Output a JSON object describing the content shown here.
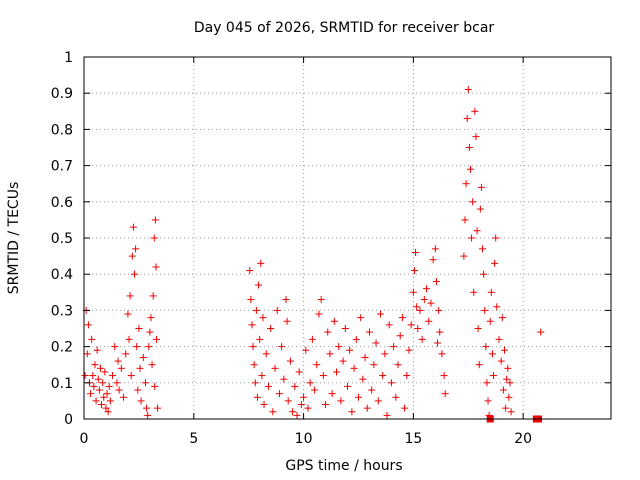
{
  "chart_data": {
    "type": "scatter",
    "title": "Day 045 of 2026, SRMTID for receiver bcar",
    "xlabel": "GPS time / hours",
    "ylabel": "SRMTID / TECUs",
    "xlim": [
      0,
      24
    ],
    "ylim": [
      0,
      1
    ],
    "xticks": [
      0,
      5,
      10,
      15,
      20
    ],
    "xtick_labels": [
      "0",
      "5",
      "10",
      "15",
      "20"
    ],
    "yticks": [
      0,
      0.1,
      0.2,
      0.3,
      0.4,
      0.5,
      0.6,
      0.7,
      0.8,
      0.9,
      1
    ],
    "ytick_labels": [
      "0",
      "0.1",
      "0.2",
      "0.3",
      "0.4",
      "0.5",
      "0.6",
      "0.7",
      "0.8",
      "0.9",
      "1"
    ],
    "grid": true,
    "marker_color": "#ee0000",
    "series": [
      {
        "name": "SRMTID",
        "marker": "plus",
        "points": [
          [
            0.05,
            0.12
          ],
          [
            0.1,
            0.3
          ],
          [
            0.15,
            0.18
          ],
          [
            0.2,
            0.26
          ],
          [
            0.25,
            0.1
          ],
          [
            0.3,
            0.07
          ],
          [
            0.35,
            0.22
          ],
          [
            0.4,
            0.12
          ],
          [
            0.45,
            0.09
          ],
          [
            0.5,
            0.15
          ],
          [
            0.55,
            0.05
          ],
          [
            0.6,
            0.19
          ],
          [
            0.65,
            0.11
          ],
          [
            0.7,
            0.08
          ],
          [
            0.75,
            0.14
          ],
          [
            0.8,
            0.04
          ],
          [
            0.85,
            0.1
          ],
          [
            0.9,
            0.06
          ],
          [
            0.95,
            0.13
          ],
          [
            1.0,
            0.03
          ],
          [
            1.05,
            0.07
          ],
          [
            1.1,
            0.02
          ],
          [
            1.15,
            0.09
          ],
          [
            1.2,
            0.05
          ],
          [
            1.3,
            0.12
          ],
          [
            1.4,
            0.2
          ],
          [
            1.5,
            0.1
          ],
          [
            1.55,
            0.16
          ],
          [
            1.6,
            0.08
          ],
          [
            1.7,
            0.14
          ],
          [
            1.8,
            0.06
          ],
          [
            1.9,
            0.18
          ],
          [
            2.0,
            0.29
          ],
          [
            2.05,
            0.22
          ],
          [
            2.1,
            0.34
          ],
          [
            2.15,
            0.12
          ],
          [
            2.2,
            0.45
          ],
          [
            2.25,
            0.53
          ],
          [
            2.3,
            0.4
          ],
          [
            2.35,
            0.47
          ],
          [
            2.4,
            0.2
          ],
          [
            2.45,
            0.08
          ],
          [
            2.5,
            0.25
          ],
          [
            2.55,
            0.14
          ],
          [
            2.6,
            0.05
          ],
          [
            2.7,
            0.17
          ],
          [
            2.8,
            0.1
          ],
          [
            2.85,
            0.03
          ],
          [
            2.9,
            0.01
          ],
          [
            2.95,
            0.2
          ],
          [
            3.0,
            0.24
          ],
          [
            3.05,
            0.28
          ],
          [
            3.1,
            0.15
          ],
          [
            3.15,
            0.34
          ],
          [
            3.2,
            0.5
          ],
          [
            3.25,
            0.55
          ],
          [
            3.3,
            0.22
          ],
          [
            3.35,
            0.03
          ],
          [
            3.28,
            0.42
          ],
          [
            3.22,
            0.09
          ],
          [
            7.55,
            0.41
          ],
          [
            7.6,
            0.33
          ],
          [
            7.65,
            0.26
          ],
          [
            7.7,
            0.2
          ],
          [
            7.75,
            0.15
          ],
          [
            7.8,
            0.1
          ],
          [
            7.85,
            0.3
          ],
          [
            7.9,
            0.06
          ],
          [
            7.95,
            0.37
          ],
          [
            8.0,
            0.22
          ],
          [
            8.05,
            0.43
          ],
          [
            8.1,
            0.12
          ],
          [
            8.15,
            0.28
          ],
          [
            8.2,
            0.04
          ],
          [
            8.3,
            0.18
          ],
          [
            8.4,
            0.09
          ],
          [
            8.5,
            0.25
          ],
          [
            8.6,
            0.02
          ],
          [
            8.7,
            0.14
          ],
          [
            8.8,
            0.3
          ],
          [
            8.9,
            0.07
          ],
          [
            9.0,
            0.2
          ],
          [
            9.1,
            0.11
          ],
          [
            9.2,
            0.33
          ],
          [
            9.25,
            0.27
          ],
          [
            9.3,
            0.05
          ],
          [
            9.4,
            0.16
          ],
          [
            9.5,
            0.02
          ],
          [
            9.6,
            0.09
          ],
          [
            9.7,
            0.01
          ],
          [
            9.8,
            0.13
          ],
          [
            9.9,
            0.04
          ],
          [
            10.0,
            0.06
          ],
          [
            10.1,
            0.19
          ],
          [
            10.2,
            0.03
          ],
          [
            10.3,
            0.1
          ],
          [
            10.4,
            0.22
          ],
          [
            10.5,
            0.08
          ],
          [
            10.6,
            0.15
          ],
          [
            10.7,
            0.29
          ],
          [
            10.8,
            0.33
          ],
          [
            10.9,
            0.12
          ],
          [
            11.0,
            0.04
          ],
          [
            11.1,
            0.24
          ],
          [
            11.2,
            0.18
          ],
          [
            11.3,
            0.07
          ],
          [
            11.4,
            0.27
          ],
          [
            11.5,
            0.13
          ],
          [
            11.6,
            0.2
          ],
          [
            11.7,
            0.05
          ],
          [
            11.8,
            0.16
          ],
          [
            11.9,
            0.25
          ],
          [
            12.0,
            0.09
          ],
          [
            12.1,
            0.19
          ],
          [
            12.2,
            0.02
          ],
          [
            12.3,
            0.14
          ],
          [
            12.4,
            0.22
          ],
          [
            12.5,
            0.06
          ],
          [
            12.6,
            0.28
          ],
          [
            12.7,
            0.11
          ],
          [
            12.8,
            0.17
          ],
          [
            12.9,
            0.03
          ],
          [
            13.0,
            0.24
          ],
          [
            13.1,
            0.08
          ],
          [
            13.2,
            0.15
          ],
          [
            13.3,
            0.21
          ],
          [
            13.4,
            0.05
          ],
          [
            13.5,
            0.29
          ],
          [
            13.6,
            0.12
          ],
          [
            13.7,
            0.18
          ],
          [
            13.8,
            0.01
          ],
          [
            13.9,
            0.26
          ],
          [
            14.0,
            0.1
          ],
          [
            14.1,
            0.2
          ],
          [
            14.2,
            0.06
          ],
          [
            14.3,
            0.15
          ],
          [
            14.4,
            0.23
          ],
          [
            14.5,
            0.28
          ],
          [
            14.6,
            0.03
          ],
          [
            14.7,
            0.12
          ],
          [
            14.8,
            0.19
          ],
          [
            14.9,
            0.26
          ],
          [
            15.0,
            0.35
          ],
          [
            15.05,
            0.41
          ],
          [
            15.1,
            0.46
          ],
          [
            15.15,
            0.31
          ],
          [
            15.2,
            0.25
          ],
          [
            15.3,
            0.3
          ],
          [
            15.4,
            0.22
          ],
          [
            15.5,
            0.33
          ],
          [
            15.6,
            0.36
          ],
          [
            15.7,
            0.27
          ],
          [
            15.8,
            0.32
          ],
          [
            15.9,
            0.44
          ],
          [
            16.0,
            0.47
          ],
          [
            16.05,
            0.38
          ],
          [
            16.1,
            0.21
          ],
          [
            16.15,
            0.3
          ],
          [
            16.2,
            0.24
          ],
          [
            16.3,
            0.18
          ],
          [
            16.4,
            0.12
          ],
          [
            16.45,
            0.07
          ],
          [
            17.3,
            0.45
          ],
          [
            17.35,
            0.55
          ],
          [
            17.4,
            0.65
          ],
          [
            17.45,
            0.83
          ],
          [
            17.5,
            0.91
          ],
          [
            17.55,
            0.75
          ],
          [
            17.6,
            0.69
          ],
          [
            17.65,
            0.5
          ],
          [
            17.7,
            0.6
          ],
          [
            17.75,
            0.35
          ],
          [
            17.8,
            0.85
          ],
          [
            17.85,
            0.78
          ],
          [
            17.9,
            0.52
          ],
          [
            17.95,
            0.25
          ],
          [
            18.0,
            0.15
          ],
          [
            18.05,
            0.58
          ],
          [
            18.1,
            0.64
          ],
          [
            18.15,
            0.47
          ],
          [
            18.2,
            0.4
          ],
          [
            18.25,
            0.3
          ],
          [
            18.3,
            0.2
          ],
          [
            18.35,
            0.1
          ],
          [
            18.4,
            0.05
          ],
          [
            18.45,
            0.01
          ],
          [
            18.5,
            0.27
          ],
          [
            18.55,
            0.35
          ],
          [
            18.6,
            0.18
          ],
          [
            18.65,
            0.12
          ],
          [
            18.7,
            0.43
          ],
          [
            18.75,
            0.5
          ],
          [
            18.8,
            0.31
          ],
          [
            18.9,
            0.22
          ],
          [
            19.0,
            0.16
          ],
          [
            19.05,
            0.28
          ],
          [
            19.1,
            0.08
          ],
          [
            19.15,
            0.19
          ],
          [
            19.2,
            0.03
          ],
          [
            19.25,
            0.11
          ],
          [
            19.3,
            0.14
          ],
          [
            19.35,
            0.06
          ],
          [
            19.4,
            0.1
          ],
          [
            19.45,
            0.02
          ],
          [
            20.8,
            0.24
          ]
        ]
      },
      {
        "name": "SRMTID",
        "marker": "filled-square",
        "points": [
          [
            18.5,
            0.0
          ],
          [
            20.6,
            0.0
          ],
          [
            20.7,
            0.0
          ]
        ]
      }
    ]
  }
}
